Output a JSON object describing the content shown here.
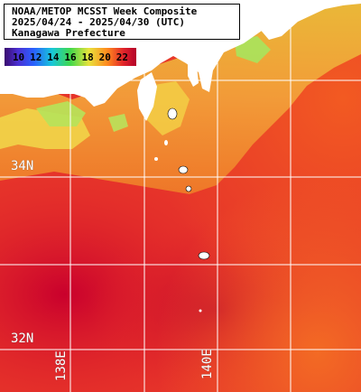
{
  "title": {
    "line1": "NOAA/METOP MCSST Week Composite",
    "line2": "2025/04/24 - 2025/04/30 (UTC)",
    "line3": "Kanagawa Prefecture"
  },
  "legend": {
    "ticks": [
      "10",
      "12",
      "14",
      "16",
      "18",
      "20",
      "22"
    ],
    "unit": ""
  },
  "grid": {
    "lat_labels": [
      "34N",
      "32N"
    ],
    "lon_labels": [
      "138E",
      "140E"
    ]
  },
  "colors": {
    "land": "#ffffff",
    "warm": "#e2262a",
    "hot": "#b3002a",
    "mid": "#ff8a1e",
    "cool": "#e8e23c",
    "cold": "#42d94b",
    "grid": "#ffffff"
  }
}
